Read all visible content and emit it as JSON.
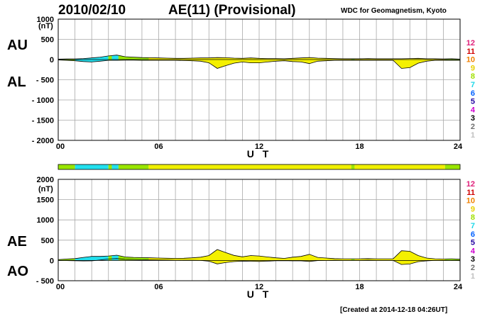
{
  "header": {
    "date": "2010/02/10",
    "title": "AE(11) (Provisional)",
    "source": "WDC for Geomagnetism, Kyoto",
    "created": "[Created at 2014-12-18 04:26UT]"
  },
  "activity_levels": [
    {
      "label": "12",
      "color": "#e0207a"
    },
    {
      "label": "11",
      "color": "#d00000"
    },
    {
      "label": "10",
      "color": "#f08000"
    },
    {
      "label": "9",
      "color": "#e8d000"
    },
    {
      "label": "8",
      "color": "#a0e000"
    },
    {
      "label": "7",
      "color": "#20d8e8"
    },
    {
      "label": "6",
      "color": "#0060ff"
    },
    {
      "label": "5",
      "color": "#2000a0"
    },
    {
      "label": "4",
      "color": "#d000d0"
    },
    {
      "label": "3",
      "color": "#000000"
    },
    {
      "label": "2",
      "color": "#707070"
    },
    {
      "label": "1",
      "color": "#c0c0c0"
    }
  ],
  "activity_bar": [
    {
      "start": 0.0,
      "end": 1.0,
      "color": "#99e600"
    },
    {
      "start": 1.0,
      "end": 3.0,
      "color": "#22e0ee"
    },
    {
      "start": 3.0,
      "end": 3.2,
      "color": "#99e600"
    },
    {
      "start": 3.2,
      "end": 3.6,
      "color": "#22e0ee"
    },
    {
      "start": 3.6,
      "end": 5.4,
      "color": "#99e600"
    },
    {
      "start": 5.4,
      "end": 17.5,
      "color": "#f0f000"
    },
    {
      "start": 17.5,
      "end": 17.7,
      "color": "#99e600"
    },
    {
      "start": 17.7,
      "end": 23.1,
      "color": "#f0f000"
    },
    {
      "start": 23.1,
      "end": 24.0,
      "color": "#99e600"
    }
  ],
  "chart_data": [
    {
      "type": "area",
      "series_labels": [
        "AU",
        "AL"
      ],
      "unit": "(nT)",
      "xlabel": "U T",
      "xlim": [
        0,
        24
      ],
      "ylim": [
        -2000,
        1000
      ],
      "xticks": [
        "00",
        "06",
        "12",
        "18",
        "24"
      ],
      "yticks": [
        "1000",
        "500",
        "0",
        "- 500",
        "- 1000",
        "- 1500",
        "- 2000"
      ],
      "grid": true,
      "x": [
        0,
        0.5,
        1,
        1.5,
        2,
        2.5,
        3,
        3.5,
        4,
        4.5,
        5,
        5.5,
        6,
        6.5,
        7,
        7.5,
        8,
        8.5,
        9,
        9.5,
        10,
        10.5,
        11,
        11.5,
        12,
        12.5,
        13,
        13.5,
        14,
        14.5,
        15,
        15.5,
        16,
        16.5,
        17,
        17.5,
        18,
        18.5,
        19,
        19.5,
        20,
        20.5,
        21,
        21.5,
        22,
        22.5,
        23,
        23.5,
        24
      ],
      "upper": [
        10,
        15,
        15,
        25,
        40,
        60,
        90,
        110,
        70,
        60,
        50,
        45,
        40,
        35,
        30,
        30,
        35,
        40,
        40,
        50,
        45,
        35,
        30,
        40,
        30,
        25,
        25,
        20,
        30,
        40,
        50,
        35,
        30,
        25,
        20,
        20,
        20,
        25,
        20,
        20,
        20,
        20,
        25,
        30,
        20,
        20,
        15,
        20,
        10
      ],
      "lower": [
        -10,
        -20,
        -30,
        -50,
        -60,
        -40,
        -20,
        -20,
        -15,
        -15,
        -20,
        -20,
        -20,
        -20,
        -20,
        -25,
        -30,
        -40,
        -80,
        -220,
        -150,
        -90,
        -60,
        -80,
        -80,
        -60,
        -40,
        -30,
        -50,
        -60,
        -100,
        -40,
        -30,
        -20,
        -20,
        -20,
        -20,
        -20,
        -20,
        -20,
        -20,
        -220,
        -200,
        -90,
        -40,
        -20,
        -20,
        -20,
        -20
      ]
    },
    {
      "type": "area",
      "series_labels": [
        "AE",
        "AO"
      ],
      "unit": "(nT)",
      "xlabel": "U T",
      "xlim": [
        0,
        24
      ],
      "ylim": [
        -500,
        2000
      ],
      "xticks": [
        "00",
        "06",
        "12",
        "18",
        "24"
      ],
      "yticks": [
        "2000",
        "1500",
        "1000",
        "500",
        "0",
        "- 500"
      ],
      "grid": true,
      "x": [
        0,
        0.5,
        1,
        1.5,
        2,
        2.5,
        3,
        3.5,
        4,
        4.5,
        5,
        5.5,
        6,
        6.5,
        7,
        7.5,
        8,
        8.5,
        9,
        9.5,
        10,
        10.5,
        11,
        11.5,
        12,
        12.5,
        13,
        13.5,
        14,
        14.5,
        15,
        15.5,
        16,
        16.5,
        17,
        17.5,
        18,
        18.5,
        19,
        19.5,
        20,
        20.5,
        21,
        21.5,
        22,
        22.5,
        23,
        23.5,
        24
      ],
      "upper": [
        20,
        35,
        45,
        75,
        100,
        100,
        110,
        130,
        85,
        75,
        70,
        65,
        60,
        55,
        50,
        55,
        65,
        80,
        120,
        270,
        195,
        125,
        90,
        120,
        110,
        85,
        65,
        50,
        80,
        100,
        150,
        75,
        60,
        45,
        40,
        40,
        40,
        45,
        40,
        40,
        40,
        240,
        225,
        120,
        60,
        40,
        35,
        40,
        30
      ],
      "lower": [
        0,
        -3,
        -8,
        -13,
        -10,
        10,
        35,
        45,
        28,
        23,
        15,
        13,
        10,
        8,
        5,
        3,
        3,
        0,
        -20,
        -85,
        -52,
        -28,
        -15,
        -20,
        -25,
        -18,
        -8,
        -5,
        -10,
        -10,
        -25,
        -3,
        0,
        3,
        0,
        0,
        0,
        3,
        0,
        0,
        0,
        -100,
        -88,
        -30,
        -10,
        0,
        -3,
        0,
        -5
      ]
    }
  ]
}
